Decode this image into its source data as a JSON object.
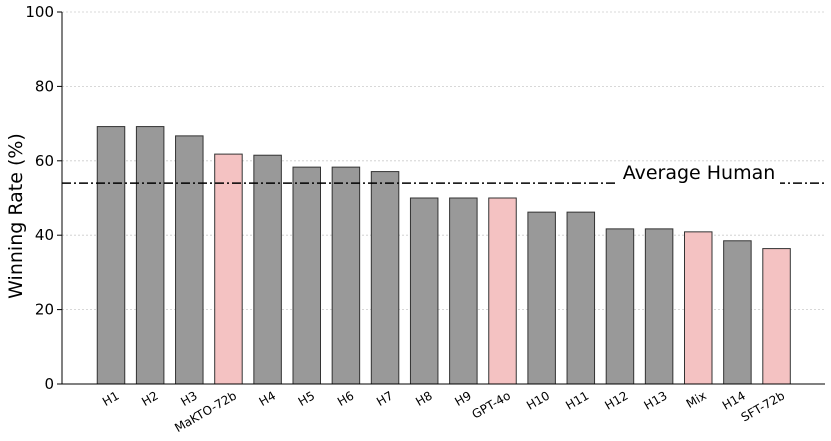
{
  "chart_data": {
    "type": "bar",
    "categories": [
      "H1",
      "H2",
      "H3",
      "MaKTO-72b",
      "H4",
      "H5",
      "H6",
      "H7",
      "H8",
      "H9",
      "GPT-4o",
      "H10",
      "H11",
      "H12",
      "H13",
      "Mix",
      "H14",
      "SFT-72b"
    ],
    "values": [
      69.2,
      69.2,
      66.7,
      61.8,
      61.5,
      58.3,
      58.3,
      57.1,
      50.0,
      50.0,
      50.0,
      46.2,
      46.2,
      41.7,
      41.7,
      40.9,
      38.5,
      36.4
    ],
    "highlight": [
      "MaKTO-72b",
      "GPT-4o",
      "Mix",
      "SFT-72b"
    ],
    "colors": {
      "default": "#999999",
      "highlight": "#f4c2c2",
      "edge": "#333333",
      "grid": "#cccccc"
    },
    "ylabel": "Winning Rate (%)",
    "ylim": [
      0,
      100
    ],
    "yticks": [
      0,
      20,
      40,
      60,
      80,
      100
    ],
    "grid": true,
    "reference_line": {
      "value": 54.0,
      "label": "Average Human",
      "style": "dash-dot"
    }
  }
}
